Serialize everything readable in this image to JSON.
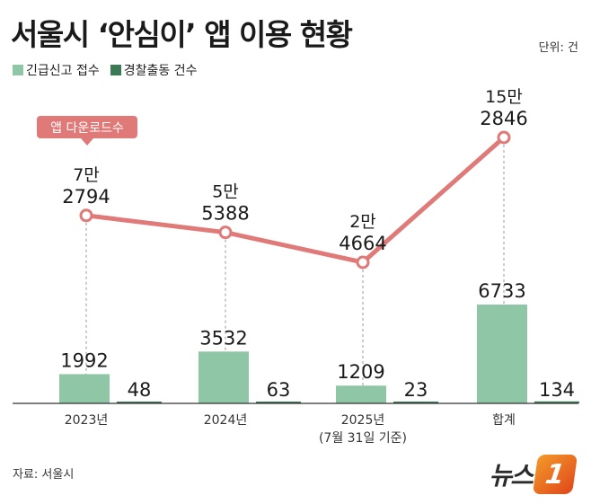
{
  "header": {
    "title": "서울시 ‘안심이’ 앱 이용 현황",
    "unit": "단위: 건"
  },
  "legend": {
    "items": [
      {
        "label": "긴급신고 접수",
        "color": "#8fc7a6"
      },
      {
        "label": "경찰출동 건수",
        "color": "#3a7a55"
      }
    ]
  },
  "footer": {
    "source": "자료: 서울시",
    "logo_text": "뉴스",
    "logo_mark": "1"
  },
  "chart_data": {
    "type": "bar+line",
    "categories": [
      "2023년",
      "2024년",
      "2025년",
      "합계"
    ],
    "category_sublabels": [
      "",
      "",
      "(7월 31일 기준)",
      ""
    ],
    "bar_series": [
      {
        "name": "긴급신고 접수",
        "color": "#8fc7a6",
        "values": [
          1992,
          3532,
          1209,
          6733
        ],
        "labels": [
          "1992",
          "3532",
          "1209",
          "6733"
        ]
      },
      {
        "name": "경찰출동 건수",
        "color": "#3a7a55",
        "values": [
          48,
          63,
          23,
          134
        ],
        "labels": [
          "48",
          "63",
          "23",
          "134"
        ]
      }
    ],
    "line_series": {
      "name": "앱 다운로드수",
      "color": "#e07a78",
      "values": [
        72794,
        55388,
        24664,
        152846
      ],
      "labels_top": [
        "7만",
        "5만",
        "2만",
        "15만"
      ],
      "labels_bottom": [
        "2794",
        "5388",
        "4664",
        "2846"
      ]
    },
    "grid": false
  }
}
